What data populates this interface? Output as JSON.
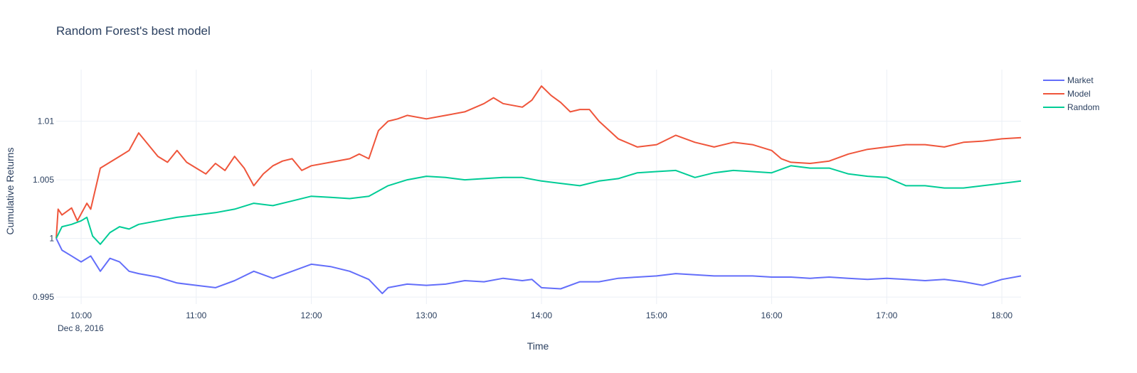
{
  "chart_data": {
    "type": "line",
    "title": "Random Forest's best model",
    "xlabel": "Time",
    "ylabel": "Cumulative Returns",
    "x_tick_labels": [
      "10:00",
      "11:00",
      "12:00",
      "13:00",
      "14:00",
      "15:00",
      "16:00",
      "17:00",
      "18:00"
    ],
    "x_date_label": "Dec 8, 2016",
    "y_tick_labels": [
      "0.995",
      "1",
      "1.005",
      "1.01"
    ],
    "y_ticks": [
      0.995,
      1.0,
      1.005,
      1.01
    ],
    "xlim": [
      "2016-12-08 09:47",
      "2016-12-08 18:10"
    ],
    "ylim": [
      0.9944,
      1.0144
    ],
    "grid": true,
    "legend_position": "top-right",
    "series": [
      {
        "name": "Market",
        "color": "#636efa",
        "x": [
          "09:47",
          "09:50",
          "09:55",
          "10:00",
          "10:05",
          "10:10",
          "10:15",
          "10:20",
          "10:25",
          "10:30",
          "10:40",
          "10:50",
          "11:00",
          "11:10",
          "11:20",
          "11:30",
          "11:40",
          "11:50",
          "12:00",
          "12:10",
          "12:20",
          "12:30",
          "12:37",
          "12:40",
          "12:50",
          "13:00",
          "13:10",
          "13:20",
          "13:30",
          "13:40",
          "13:50",
          "13:55",
          "14:00",
          "14:10",
          "14:20",
          "14:30",
          "14:40",
          "14:50",
          "15:00",
          "15:10",
          "15:20",
          "15:30",
          "15:40",
          "15:50",
          "16:00",
          "16:10",
          "16:20",
          "16:30",
          "16:40",
          "16:50",
          "17:00",
          "17:10",
          "17:20",
          "17:30",
          "17:40",
          "17:50",
          "18:00",
          "18:10"
        ],
        "y": [
          1.0,
          0.999,
          0.9985,
          0.998,
          0.9985,
          0.9972,
          0.9983,
          0.998,
          0.9972,
          0.997,
          0.9967,
          0.9962,
          0.996,
          0.9958,
          0.9964,
          0.9972,
          0.9966,
          0.9972,
          0.9978,
          0.9976,
          0.9972,
          0.9965,
          0.9953,
          0.9958,
          0.9961,
          0.996,
          0.9961,
          0.9964,
          0.9963,
          0.9966,
          0.9964,
          0.9965,
          0.9958,
          0.9957,
          0.9963,
          0.9963,
          0.9966,
          0.9967,
          0.9968,
          0.997,
          0.9969,
          0.9968,
          0.9968,
          0.9968,
          0.9967,
          0.9967,
          0.9966,
          0.9967,
          0.9966,
          0.9965,
          0.9966,
          0.9965,
          0.9964,
          0.9965,
          0.9963,
          0.996,
          0.9965,
          0.9968
        ]
      },
      {
        "name": "Model",
        "color": "#ef553b",
        "x": [
          "09:47",
          "09:48",
          "09:50",
          "09:55",
          "09:58",
          "10:03",
          "10:05",
          "10:10",
          "10:15",
          "10:20",
          "10:25",
          "10:30",
          "10:35",
          "10:40",
          "10:45",
          "10:50",
          "10:55",
          "11:00",
          "11:05",
          "11:10",
          "11:15",
          "11:20",
          "11:25",
          "11:30",
          "11:35",
          "11:40",
          "11:45",
          "11:50",
          "11:55",
          "12:00",
          "12:10",
          "12:20",
          "12:25",
          "12:30",
          "12:35",
          "12:40",
          "12:45",
          "12:50",
          "13:00",
          "13:10",
          "13:20",
          "13:30",
          "13:35",
          "13:40",
          "13:50",
          "13:55",
          "14:00",
          "14:05",
          "14:10",
          "14:15",
          "14:20",
          "14:25",
          "14:30",
          "14:40",
          "14:50",
          "15:00",
          "15:10",
          "15:20",
          "15:30",
          "15:40",
          "15:50",
          "16:00",
          "16:05",
          "16:10",
          "16:20",
          "16:30",
          "16:40",
          "16:50",
          "17:00",
          "17:10",
          "17:20",
          "17:30",
          "17:40",
          "17:50",
          "18:00",
          "18:10"
        ],
        "y": [
          1.0,
          1.0025,
          1.002,
          1.0026,
          1.0015,
          1.003,
          1.0025,
          1.006,
          1.0065,
          1.007,
          1.0075,
          1.009,
          1.008,
          1.007,
          1.0065,
          1.0075,
          1.0065,
          1.006,
          1.0055,
          1.0064,
          1.0058,
          1.007,
          1.006,
          1.0045,
          1.0055,
          1.0062,
          1.0066,
          1.0068,
          1.0058,
          1.0062,
          1.0065,
          1.0068,
          1.0072,
          1.0068,
          1.0092,
          1.01,
          1.0102,
          1.0105,
          1.0102,
          1.0105,
          1.0108,
          1.0115,
          1.012,
          1.0115,
          1.0112,
          1.0118,
          1.013,
          1.0122,
          1.0116,
          1.0108,
          1.011,
          1.011,
          1.01,
          1.0085,
          1.0078,
          1.008,
          1.0088,
          1.0082,
          1.0078,
          1.0082,
          1.008,
          1.0075,
          1.0068,
          1.0065,
          1.0064,
          1.0066,
          1.0072,
          1.0076,
          1.0078,
          1.008,
          1.008,
          1.0078,
          1.0082,
          1.0083,
          1.0085,
          1.0086
        ]
      },
      {
        "name": "Random",
        "color": "#00cc96",
        "x": [
          "09:47",
          "09:50",
          "09:55",
          "10:00",
          "10:03",
          "10:06",
          "10:10",
          "10:15",
          "10:20",
          "10:25",
          "10:30",
          "10:40",
          "10:50",
          "11:00",
          "11:10",
          "11:20",
          "11:30",
          "11:40",
          "11:50",
          "12:00",
          "12:10",
          "12:20",
          "12:30",
          "12:40",
          "12:50",
          "13:00",
          "13:10",
          "13:20",
          "13:30",
          "13:40",
          "13:50",
          "14:00",
          "14:10",
          "14:20",
          "14:30",
          "14:40",
          "14:50",
          "15:00",
          "15:10",
          "15:20",
          "15:30",
          "15:40",
          "15:50",
          "16:00",
          "16:10",
          "16:20",
          "16:30",
          "16:40",
          "16:50",
          "17:00",
          "17:10",
          "17:20",
          "17:30",
          "17:40",
          "17:50",
          "18:00",
          "18:10"
        ],
        "y": [
          1.0,
          1.001,
          1.0012,
          1.0015,
          1.0018,
          1.0002,
          0.9995,
          1.0005,
          1.001,
          1.0008,
          1.0012,
          1.0015,
          1.0018,
          1.002,
          1.0022,
          1.0025,
          1.003,
          1.0028,
          1.0032,
          1.0036,
          1.0035,
          1.0034,
          1.0036,
          1.0045,
          1.005,
          1.0053,
          1.0052,
          1.005,
          1.0051,
          1.0052,
          1.0052,
          1.0049,
          1.0047,
          1.0045,
          1.0049,
          1.0051,
          1.0056,
          1.0057,
          1.0058,
          1.0052,
          1.0056,
          1.0058,
          1.0057,
          1.0056,
          1.0062,
          1.006,
          1.006,
          1.0055,
          1.0053,
          1.0052,
          1.0045,
          1.0045,
          1.0043,
          1.0043,
          1.0045,
          1.0047,
          1.0049
        ]
      }
    ]
  }
}
